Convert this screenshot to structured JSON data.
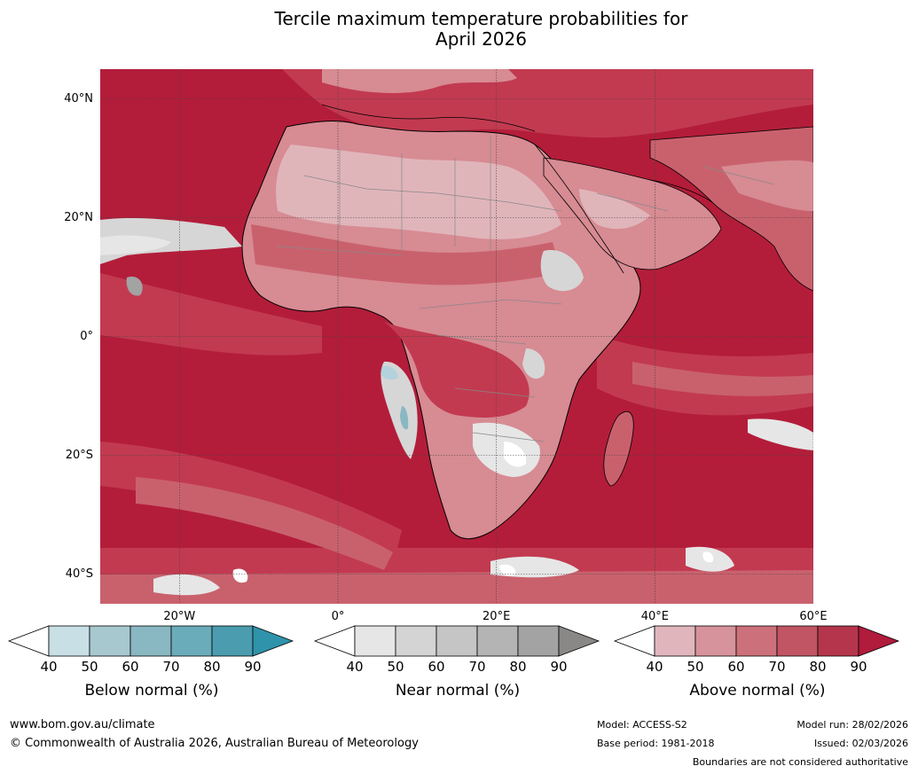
{
  "title": {
    "line1": "Tercile maximum temperature probabilities for",
    "line2": "April 2026"
  },
  "map": {
    "projection": "equirectangular",
    "lon_range": [
      -30,
      60
    ],
    "lat_range": [
      -45,
      45
    ],
    "lat_ticks": [
      {
        "value": 40,
        "label": "40°N"
      },
      {
        "value": 20,
        "label": "20°N"
      },
      {
        "value": 0,
        "label": "0°"
      },
      {
        "value": -20,
        "label": "20°S"
      },
      {
        "value": -40,
        "label": "40°S"
      }
    ],
    "lon_ticks": [
      {
        "value": -20,
        "label": "20°W"
      },
      {
        "value": 0,
        "label": "0°"
      },
      {
        "value": 20,
        "label": "20°E"
      },
      {
        "value": 40,
        "label": "40°E"
      },
      {
        "value": 60,
        "label": "60°E"
      }
    ],
    "colors": {
      "ocean_above_90": "#b31d3a",
      "above_80_90": "#c23a50",
      "above_70_80": "#c9616d",
      "above_60_70": "#d78b93",
      "above_50_60": "#e0b5ba",
      "near_normal_light": "#d6d6d6",
      "below_light": "#b3d2dc",
      "coast": "#000000",
      "border": "#888888",
      "grid": "#444444"
    }
  },
  "colorbars": [
    {
      "label": "Below normal (%)",
      "ticks": [
        "40",
        "50",
        "60",
        "70",
        "80",
        "90"
      ],
      "colors": [
        "#ffffff",
        "#c7dfe5",
        "#a8c8cf",
        "#89b7c2",
        "#6aacba",
        "#4a9cae",
        "#2f93ab"
      ]
    },
    {
      "label": "Near normal (%)",
      "ticks": [
        "40",
        "50",
        "60",
        "70",
        "80",
        "90"
      ],
      "colors": [
        "#ffffff",
        "#e6e6e6",
        "#d4d4d4",
        "#c5c5c5",
        "#b4b4b4",
        "#a3a3a3",
        "#8a8787"
      ]
    },
    {
      "label": "Above normal (%)",
      "ticks": [
        "40",
        "50",
        "60",
        "70",
        "80",
        "90"
      ],
      "colors": [
        "#ffffff",
        "#e0b6bc",
        "#d7939c",
        "#cc717b",
        "#c15563",
        "#b5364c",
        "#b11b3c"
      ]
    }
  ],
  "footer": {
    "website": "www.bom.gov.au/climate",
    "copyright": "© Commonwealth of Australia 2026, Australian Bureau of Meteorology",
    "model": "Model: ACCESS-S2",
    "base_period": "Base period: 1981-2018",
    "model_run": "Model run: 28/02/2026",
    "issued": "Issued: 02/03/2026",
    "disclaimer": "Boundaries are not considered authoritative"
  }
}
